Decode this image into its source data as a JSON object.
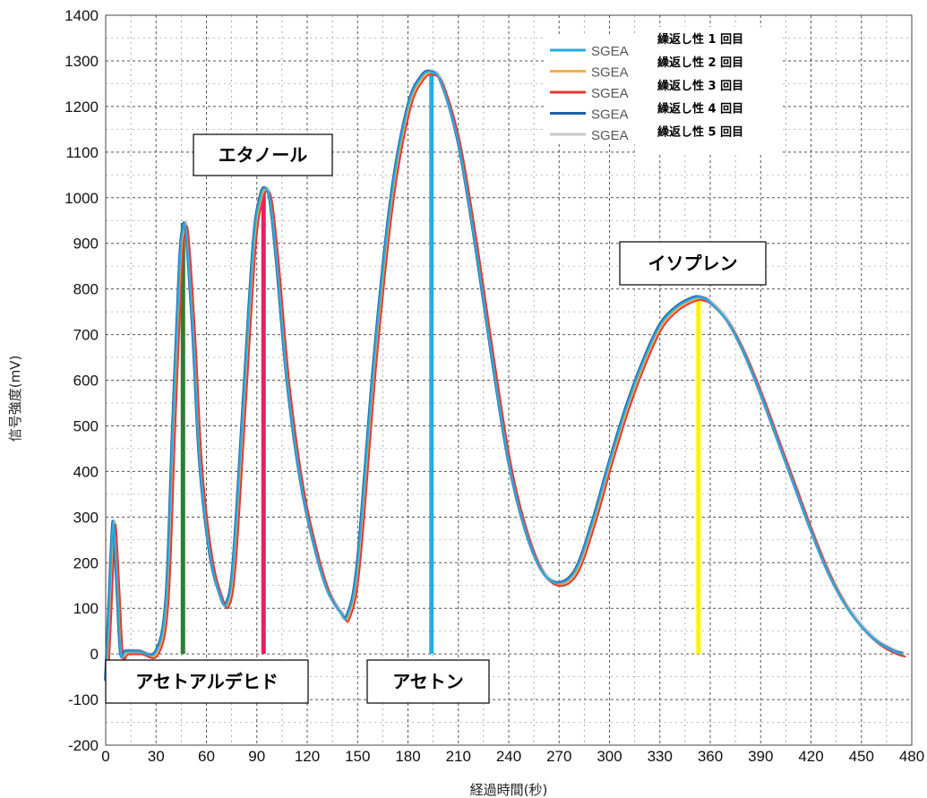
{
  "chart_data": {
    "type": "line",
    "xlabel": "経過時間(秒)",
    "ylabel": "信号強度(mV)",
    "xlim": [
      0,
      480
    ],
    "ylim": [
      -200,
      1400
    ],
    "x_ticks": [
      "0",
      "30",
      "60",
      "90",
      "120",
      "150",
      "180",
      "210",
      "240",
      "270",
      "300",
      "330",
      "360",
      "390",
      "420",
      "450",
      "480"
    ],
    "y_ticks": [
      "1400",
      "1300",
      "1200",
      "1100",
      "1000",
      "900",
      "800",
      "700",
      "600",
      "500",
      "400",
      "300",
      "200",
      "100",
      "0",
      "-100",
      "-200"
    ],
    "grid": true,
    "legend_position": "top-right",
    "series": [
      {
        "name": "SGEA",
        "label": "繰返し性  1 回目",
        "color": "#29abe2"
      },
      {
        "name": "SGEA",
        "label": "繰返し性  2 回目",
        "color": "#f5b041"
      },
      {
        "name": "SGEA",
        "label": "繰返し性  3 回目",
        "color": "#e53935"
      },
      {
        "name": "SGEA",
        "label": "繰返し性  4 回目",
        "color": "#1f5fa8"
      },
      {
        "name": "SGEA",
        "label": "繰返し性  5 回目",
        "color": "#c8c8c8"
      }
    ],
    "x": [
      0,
      2,
      4,
      5,
      7,
      9,
      12,
      20,
      30,
      36,
      40,
      44,
      46,
      48,
      52,
      56,
      62,
      68,
      72,
      76,
      82,
      88,
      92,
      95,
      98,
      102,
      108,
      116,
      124,
      132,
      140,
      144,
      150,
      160,
      170,
      180,
      188,
      194,
      200,
      210,
      220,
      230,
      240,
      250,
      260,
      270,
      280,
      290,
      300,
      310,
      320,
      330,
      340,
      350,
      355,
      360,
      370,
      380,
      390,
      400,
      410,
      420,
      430,
      440,
      450,
      460,
      470,
      475
    ],
    "values": [
      -60,
      100,
      270,
      270,
      130,
      0,
      5,
      5,
      5,
      120,
      500,
      850,
      930,
      920,
      700,
      420,
      220,
      130,
      110,
      200,
      550,
      900,
      1000,
      1020,
      990,
      850,
      600,
      380,
      240,
      140,
      90,
      85,
      200,
      650,
      1000,
      1200,
      1265,
      1275,
      1250,
      1120,
      900,
      650,
      420,
      270,
      180,
      155,
      185,
      290,
      420,
      540,
      640,
      720,
      760,
      780,
      780,
      770,
      730,
      660,
      570,
      470,
      370,
      270,
      180,
      110,
      60,
      25,
      5,
      0
    ],
    "markers": [
      {
        "label": "アセトアルデヒド",
        "x": 46,
        "y": 945,
        "color": "#2e7d32"
      },
      {
        "label": "エタノール",
        "x": 94,
        "y": 1020,
        "color": "#e91e63"
      },
      {
        "label": "アセトン",
        "x": 194,
        "y": 1280,
        "color": "#29abe2"
      },
      {
        "label": "イソプレン",
        "x": 353,
        "y": 785,
        "color": "#fff200"
      }
    ]
  }
}
